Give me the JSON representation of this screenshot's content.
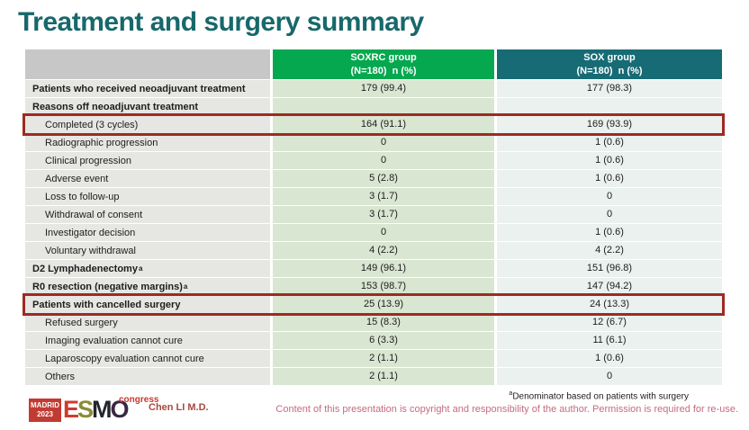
{
  "slide": {
    "title": "Treatment and surgery summary",
    "presenter": "Chen LI M.D.",
    "footnote_marker": "a",
    "footnote": "Denominator based on patients with surgery",
    "copyright": "Content of this presentation is copyright and responsibility of the author. Permission is required for re-use."
  },
  "logo": {
    "city": "MADRID",
    "year": "2023",
    "letters": [
      {
        "char": "E",
        "color": "#cf3b2e"
      },
      {
        "char": "S",
        "color": "#8a8c35"
      },
      {
        "char": "M",
        "color": "#23252d"
      },
      {
        "char": "O",
        "color": "#3a2740"
      }
    ],
    "congress": "congress"
  },
  "colors": {
    "title": "#17686b",
    "soxrc_header": "#06a84f",
    "sox_header": "#176b74",
    "label_cell": "#e6e6e3",
    "soxrc_cell": "#d9e6d2",
    "sox_cell": "#eaf1ee",
    "highlight_border": "#9e2a22"
  },
  "table": {
    "header": [
      {
        "line1": "",
        "line2": ""
      },
      {
        "line1": "SOXRC group",
        "line2": "(N=180)  n (%)"
      },
      {
        "line1": "SOX group",
        "line2": "(N=180)  n (%)"
      }
    ],
    "rows": [
      {
        "label": "Patients who received neoadjuvant treatment",
        "bold": true,
        "indent": false,
        "soxrc": "179 (99.4)",
        "sox": "177 (98.3)",
        "highlight": false
      },
      {
        "label": "Reasons off neoadjuvant treatment",
        "bold": true,
        "indent": false,
        "soxrc": "",
        "sox": "",
        "highlight": false
      },
      {
        "label": "Completed (3 cycles)",
        "bold": false,
        "indent": true,
        "soxrc": "164 (91.1)",
        "sox": "169 (93.9)",
        "highlight": true
      },
      {
        "label": "Radiographic progression",
        "bold": false,
        "indent": true,
        "soxrc": "0",
        "sox": "1 (0.6)",
        "highlight": false
      },
      {
        "label": "Clinical progression",
        "bold": false,
        "indent": true,
        "soxrc": "0",
        "sox": "1 (0.6)",
        "highlight": false
      },
      {
        "label": "Adverse event",
        "bold": false,
        "indent": true,
        "soxrc": "5 (2.8)",
        "sox": "1 (0.6)",
        "highlight": false
      },
      {
        "label": "Loss to follow-up",
        "bold": false,
        "indent": true,
        "soxrc": "3 (1.7)",
        "sox": "0",
        "highlight": false
      },
      {
        "label": "Withdrawal of consent",
        "bold": false,
        "indent": true,
        "soxrc": "3 (1.7)",
        "sox": "0",
        "highlight": false
      },
      {
        "label": "Investigator decision",
        "bold": false,
        "indent": true,
        "soxrc": "0",
        "sox": "1 (0.6)",
        "highlight": false
      },
      {
        "label": "Voluntary withdrawal",
        "bold": false,
        "indent": true,
        "soxrc": "4 (2.2)",
        "sox": "4 (2.2)",
        "highlight": false
      },
      {
        "label": "D2 Lymphadenectomy",
        "sup": "a",
        "bold": true,
        "indent": false,
        "soxrc": "149 (96.1)",
        "sox": "151 (96.8)",
        "highlight": false
      },
      {
        "label": "R0 resection (negative margins)",
        "sup": "a",
        "bold": true,
        "indent": false,
        "soxrc": "153 (98.7)",
        "sox": "147 (94.2)",
        "highlight": false
      },
      {
        "label": "Patients with cancelled surgery",
        "bold": true,
        "indent": false,
        "soxrc": "25 (13.9)",
        "sox": "24 (13.3)",
        "highlight": true
      },
      {
        "label": "Refused surgery",
        "bold": false,
        "indent": true,
        "soxrc": "15 (8.3)",
        "sox": "12 (6.7)",
        "highlight": false
      },
      {
        "label": "Imaging evaluation cannot cure",
        "bold": false,
        "indent": true,
        "soxrc": "6 (3.3)",
        "sox": "11 (6.1)",
        "highlight": false
      },
      {
        "label": "Laparoscopy evaluation cannot cure",
        "bold": false,
        "indent": true,
        "soxrc": "2 (1.1)",
        "sox": "1 (0.6)",
        "highlight": false
      },
      {
        "label": "Others",
        "bold": false,
        "indent": true,
        "soxrc": "2 (1.1)",
        "sox": "0",
        "highlight": false
      }
    ]
  }
}
